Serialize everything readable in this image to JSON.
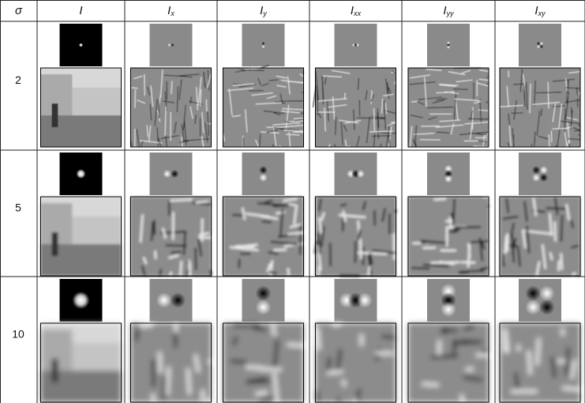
{
  "table": {
    "header": [
      {
        "symbol": "σ"
      },
      {
        "symbol": "I"
      },
      {
        "symbol": "I",
        "sub": "x"
      },
      {
        "symbol": "I",
        "sub": "y"
      },
      {
        "symbol": "I",
        "sub": "xx"
      },
      {
        "symbol": "I",
        "sub": "yy"
      },
      {
        "symbol": "I",
        "sub": "xy"
      }
    ],
    "rows": [
      {
        "sigma": "2"
      },
      {
        "sigma": "5"
      },
      {
        "sigma": "10"
      }
    ]
  }
}
